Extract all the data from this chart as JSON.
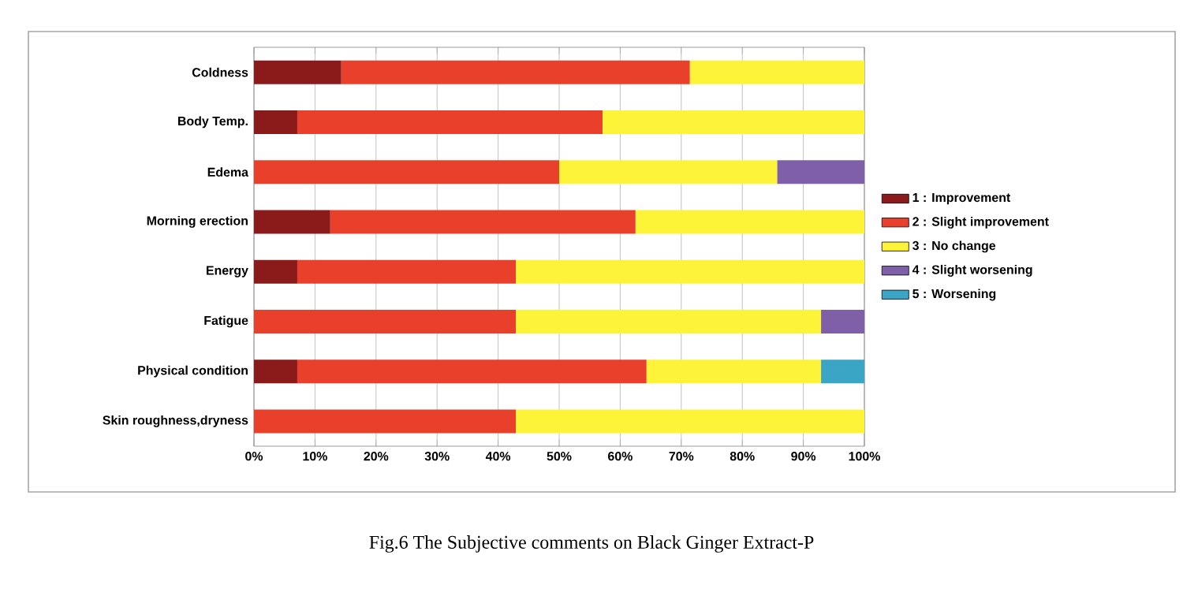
{
  "chart_data": {
    "type": "bar",
    "orientation": "horizontal",
    "stacked": true,
    "categories": [
      "Coldness",
      "Body Temp.",
      "Edema",
      "Morning erection",
      "Energy",
      "Fatigue",
      "Physical condition",
      "Skin roughness,dryness"
    ],
    "series": [
      {
        "name": "1 : Improvement",
        "color": "#8b1a1a",
        "values": [
          14.3,
          7.1,
          0,
          12.5,
          7.1,
          0,
          7.1,
          0
        ]
      },
      {
        "name": "2 : Slight improvement",
        "color": "#e8402a",
        "values": [
          57.1,
          50.0,
          50.0,
          50.0,
          35.8,
          42.9,
          57.2,
          42.9
        ]
      },
      {
        "name": "3 : No change",
        "color": "#fdf43a",
        "values": [
          28.6,
          42.9,
          35.7,
          37.5,
          57.1,
          50.0,
          28.6,
          57.1
        ]
      },
      {
        "name": "4 : Slight worsening",
        "color": "#7f5fa8",
        "values": [
          0,
          0,
          14.3,
          0,
          0,
          7.1,
          0,
          0
        ]
      },
      {
        "name": "5 : Worsening",
        "color": "#3aa5c4",
        "values": [
          0,
          0,
          0,
          0,
          0,
          0,
          7.1,
          0
        ]
      }
    ],
    "xlim": [
      0,
      100
    ],
    "xticks": [
      {
        "value": 0,
        "label": "0%"
      },
      {
        "value": 10,
        "label": "10%"
      },
      {
        "value": 20,
        "label": "20%"
      },
      {
        "value": 30,
        "label": "30%"
      },
      {
        "value": 40,
        "label": "40%"
      },
      {
        "value": 50,
        "label": "50%"
      },
      {
        "value": 60,
        "label": "60%"
      },
      {
        "value": 70,
        "label": "70%"
      },
      {
        "value": 80,
        "label": "80%"
      },
      {
        "value": 90,
        "label": "90%"
      },
      {
        "value": 100,
        "label": "100%"
      }
    ],
    "grid": "x",
    "legend": "right",
    "annotations": [
      "Fig.6 The Subjective comments on Black Ginger Extract-P"
    ]
  }
}
